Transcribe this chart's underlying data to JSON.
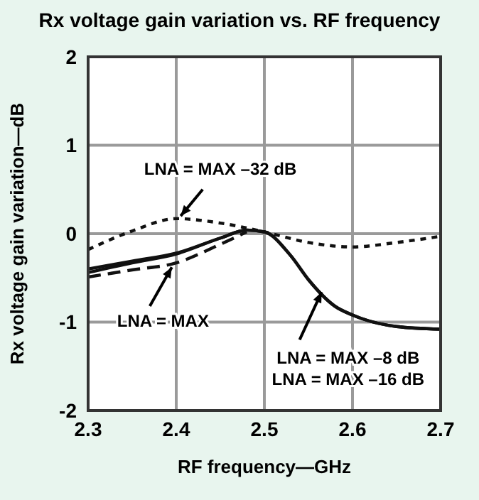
{
  "chart_data": {
    "type": "line",
    "title": "Rx voltage gain variation vs. RF frequency",
    "xlabel": "RF frequency—GHz",
    "ylabel": "Rx voltage gain variation—dB",
    "xlim": [
      2.3,
      2.7
    ],
    "xticks": [
      2.3,
      2.4,
      2.5,
      2.6,
      2.7
    ],
    "ylim": [
      -2,
      2
    ],
    "yticks": [
      -2,
      -1,
      0,
      1,
      2
    ],
    "grid": true,
    "marker": "none",
    "series": [
      {
        "name": "LNA = MAX –32 dB",
        "color": "#111111",
        "line_style": "dotted",
        "x": [
          2.3,
          2.35,
          2.4,
          2.45,
          2.5,
          2.55,
          2.6,
          2.65,
          2.7
        ],
        "values": [
          -0.18,
          0.03,
          0.17,
          0.12,
          0.02,
          -0.1,
          -0.15,
          -0.1,
          -0.03
        ]
      },
      {
        "name": "LNA = MAX",
        "color": "#111111",
        "line_style": "dashed",
        "x": [
          2.3,
          2.35,
          2.4,
          2.45,
          2.48
        ],
        "values": [
          -0.49,
          -0.41,
          -0.33,
          -0.12,
          0.02
        ]
      },
      {
        "name": "LNA = MAX –8 dB",
        "color": "#111111",
        "line_style": "solid",
        "x": [
          2.3,
          2.35,
          2.4,
          2.45,
          2.48,
          2.5,
          2.53,
          2.55,
          2.58,
          2.6,
          2.65,
          2.7
        ],
        "values": [
          -0.44,
          -0.33,
          -0.23,
          -0.05,
          0.04,
          0.02,
          -0.25,
          -0.52,
          -0.82,
          -0.92,
          -1.05,
          -1.08
        ]
      },
      {
        "name": "LNA = MAX –16 dB",
        "color": "#111111",
        "line_style": "solid",
        "x": [
          2.3,
          2.35,
          2.4,
          2.45,
          2.48,
          2.5,
          2.53,
          2.55,
          2.58,
          2.6,
          2.65,
          2.7
        ],
        "values": [
          -0.4,
          -0.31,
          -0.22,
          -0.05,
          0.04,
          0.02,
          -0.25,
          -0.52,
          -0.82,
          -0.92,
          -1.05,
          -1.08
        ]
      }
    ]
  }
}
